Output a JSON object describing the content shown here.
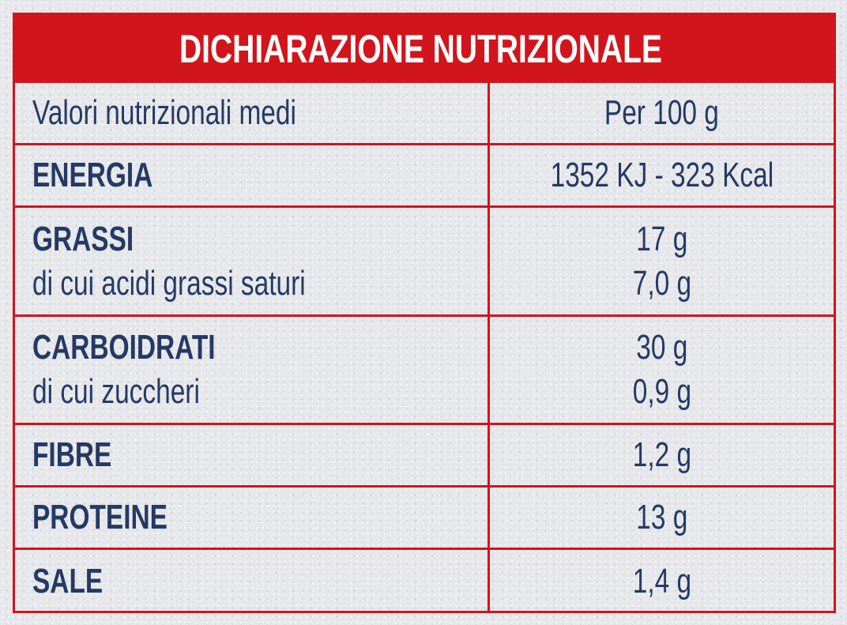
{
  "title": "DICHIARAZIONE NUTRIZIONALE",
  "header": {
    "left": "Valori nutrizionali medi",
    "right": "Per 100 g"
  },
  "rows": {
    "energia": {
      "label": "ENERGIA",
      "value": "1352 KJ - 323 Kcal"
    },
    "grassi": {
      "label": "GRASSI",
      "value": "17 g",
      "sub_label": "di cui acidi grassi saturi",
      "sub_value": "7,0 g"
    },
    "carboidrati": {
      "label": "CARBOIDRATI",
      "value": "30 g",
      "sub_label": "di cui zuccheri",
      "sub_value": "0,9 g"
    },
    "fibre": {
      "label": "FIBRE",
      "value": "1,2 g"
    },
    "proteine": {
      "label": "PROTEINE",
      "value": "13 g"
    },
    "sale": {
      "label": "SALE",
      "value": "1,4 g"
    }
  },
  "colors": {
    "accent": "#d2141c",
    "text": "#243a64",
    "background": "#e6e7ea"
  }
}
